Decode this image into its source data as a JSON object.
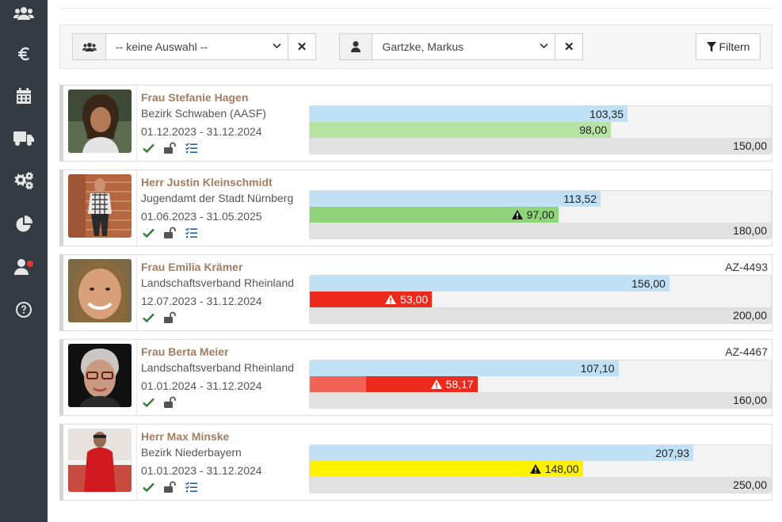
{
  "sidebar": {
    "items": [
      {
        "icon": "users-icon"
      },
      {
        "icon": "euro-icon"
      },
      {
        "icon": "calendar-icon"
      },
      {
        "icon": "truck-icon"
      },
      {
        "icon": "cogs-icon"
      },
      {
        "icon": "pie-chart-icon"
      },
      {
        "icon": "user-notification-icon"
      },
      {
        "icon": "help-icon"
      }
    ]
  },
  "filters": {
    "group_select": {
      "value": "-- keine Auswahl --",
      "icon": "users-icon"
    },
    "person_select": {
      "value": "Gartzke, Markus",
      "icon": "user-icon"
    },
    "clear_label": "✕",
    "filter_button": {
      "label": "Filtern",
      "icon": "funnel-icon"
    }
  },
  "colors": {
    "planned": "#bfe0f5",
    "actual_ok": "#8fd47a",
    "actual_light_ok": "#b6e3a2",
    "actual_red": "#ee2a1d",
    "actual_light_red": "#f26355",
    "actual_yellow": "#fff200",
    "name": "#a47c5f"
  },
  "cases": [
    {
      "name": "Frau Stefanie Hagen",
      "org": "Bezirk Schwaben (AASF)",
      "period": "01.12.2023 - 31.12.2024",
      "az": "",
      "has_list_icon": true,
      "planned": 103.35,
      "planned_label": "103,35",
      "actual": 98.0,
      "actual_label": "98,00",
      "actual_status": "ok-light",
      "actual_warning": false,
      "total": 150.0,
      "total_label": "150,00"
    },
    {
      "name": "Herr Justin Kleinschmidt",
      "org": "Jugendamt der Stadt Nürnberg",
      "period": "01.06.2023 - 31.05.2025",
      "az": "",
      "has_list_icon": true,
      "planned": 113.52,
      "planned_label": "113,52",
      "actual": 97.0,
      "actual_label": "97,00",
      "actual_status": "ok",
      "actual_warning": true,
      "total": 180.0,
      "total_label": "180,00"
    },
    {
      "name": "Frau Emilia Krämer",
      "org": "Landschaftsverband Rheinland",
      "period": "12.07.2023 - 31.12.2024",
      "az": "AZ-4493",
      "has_list_icon": false,
      "planned": 156.0,
      "planned_label": "156,00",
      "actual": 53.0,
      "actual_label": "53,00",
      "actual_status": "red",
      "actual_warning": true,
      "total": 200.0,
      "total_label": "200,00"
    },
    {
      "name": "Frau Berta Meier",
      "org": "Landschaftsverband Rheinland",
      "period": "01.01.2024 - 31.12.2024",
      "az": "AZ-4467",
      "has_list_icon": false,
      "planned": 107.1,
      "planned_label": "107,10",
      "actual": 58.17,
      "actual_label": "58,17",
      "actual_status": "red",
      "actual_warning": true,
      "actual_light": 19.5,
      "total": 160.0,
      "total_label": "160,00"
    },
    {
      "name": "Herr Max Minske",
      "org": "Bezirk Niederbayern",
      "period": "01.01.2023 - 31.12.2024",
      "az": "",
      "has_list_icon": true,
      "planned": 207.93,
      "planned_label": "207,93",
      "actual": 148.0,
      "actual_label": "148,00",
      "actual_status": "yellow",
      "actual_warning": true,
      "total": 250.0,
      "total_label": "250,00"
    }
  ]
}
